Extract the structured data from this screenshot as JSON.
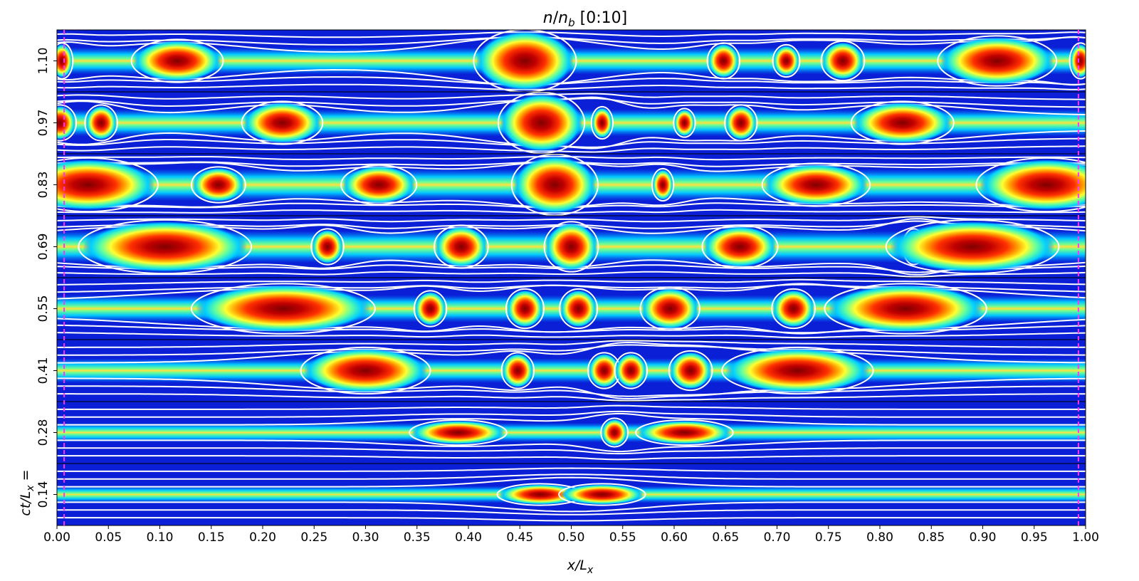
{
  "title": "n/n_b [0:10]",
  "title_parts": {
    "n": "n",
    "slash": "/",
    "nb": "n",
    "sub": "b",
    "range": " [0:10]"
  },
  "colormap": {
    "name": "jet",
    "bg": "#0a1fd6",
    "colors": [
      "#00007f",
      "#0000ff",
      "#0080ff",
      "#00ffff",
      "#80ff80",
      "#ffff00",
      "#ff8000",
      "#ff0000",
      "#7f0000"
    ]
  },
  "contour_color": "#ffffff",
  "marker_color": "#ff33ff",
  "chart_data": {
    "type": "heatmap",
    "xlabel": "x/L_x",
    "xlabel_parts": {
      "main": "x/L",
      "sub": "x"
    },
    "ylabel_parts": {
      "main": "ct/L",
      "sub": "x",
      "eq": " ="
    },
    "xlim": [
      0.0,
      1.0
    ],
    "x_ticks": [
      "0.00",
      "0.05",
      "0.10",
      "0.15",
      "0.20",
      "0.25",
      "0.30",
      "0.35",
      "0.40",
      "0.45",
      "0.50",
      "0.55",
      "0.60",
      "0.65",
      "0.70",
      "0.75",
      "0.80",
      "0.85",
      "0.90",
      "0.95",
      "1.00"
    ],
    "x_tick_values": [
      0.0,
      0.05,
      0.1,
      0.15,
      0.2,
      0.25,
      0.3,
      0.35,
      0.4,
      0.45,
      0.5,
      0.55,
      0.6,
      0.65,
      0.7,
      0.75,
      0.8,
      0.85,
      0.9,
      0.95,
      1.0
    ],
    "dashed_markers_x": [
      0.007,
      0.993
    ],
    "panels": [
      {
        "label": "1.10",
        "current_width": 0.22,
        "blobs": [
          [
            0.005,
            0.02,
            0.5
          ],
          [
            0.117,
            0.085,
            0.6
          ],
          [
            0.455,
            0.095,
            0.95
          ],
          [
            0.648,
            0.03,
            0.5
          ],
          [
            0.709,
            0.025,
            0.45
          ],
          [
            0.764,
            0.04,
            0.55
          ],
          [
            0.914,
            0.11,
            0.7
          ],
          [
            0.995,
            0.02,
            0.5
          ]
        ]
      },
      {
        "label": "0.97",
        "current_width": 0.22,
        "blobs": [
          [
            0.003,
            0.03,
            0.5
          ],
          [
            0.043,
            0.03,
            0.5
          ],
          [
            0.219,
            0.075,
            0.6
          ],
          [
            0.471,
            0.08,
            0.85
          ],
          [
            0.53,
            0.02,
            0.45
          ],
          [
            0.61,
            0.02,
            0.4
          ],
          [
            0.665,
            0.03,
            0.5
          ],
          [
            0.822,
            0.095,
            0.6
          ]
        ]
      },
      {
        "label": "0.83",
        "current_width": 0.26,
        "blobs": [
          [
            0.03,
            0.13,
            0.75
          ],
          [
            0.157,
            0.05,
            0.5
          ],
          [
            0.313,
            0.07,
            0.55
          ],
          [
            0.484,
            0.08,
            0.85
          ],
          [
            0.589,
            0.02,
            0.45
          ],
          [
            0.738,
            0.1,
            0.6
          ],
          [
            0.962,
            0.13,
            0.75
          ]
        ]
      },
      {
        "label": "0.69",
        "current_width": 0.26,
        "blobs": [
          [
            0.105,
            0.16,
            0.75
          ],
          [
            0.263,
            0.03,
            0.5
          ],
          [
            0.393,
            0.05,
            0.6
          ],
          [
            0.5,
            0.05,
            0.7
          ],
          [
            0.664,
            0.07,
            0.6
          ],
          [
            0.833,
            0.02,
            0.5
          ],
          [
            0.89,
            0.16,
            0.75
          ]
        ]
      },
      {
        "label": "0.55",
        "current_width": 0.22,
        "blobs": [
          [
            0.22,
            0.17,
            0.7
          ],
          [
            0.363,
            0.03,
            0.5
          ],
          [
            0.455,
            0.035,
            0.55
          ],
          [
            0.507,
            0.035,
            0.55
          ],
          [
            0.596,
            0.055,
            0.6
          ],
          [
            0.716,
            0.04,
            0.55
          ],
          [
            0.825,
            0.15,
            0.7
          ]
        ]
      },
      {
        "label": "0.41",
        "current_width": 0.2,
        "blobs": [
          [
            0.3,
            0.12,
            0.65
          ],
          [
            0.448,
            0.03,
            0.5
          ],
          [
            0.532,
            0.03,
            0.5
          ],
          [
            0.558,
            0.03,
            0.5
          ],
          [
            0.616,
            0.04,
            0.55
          ],
          [
            0.72,
            0.14,
            0.65
          ]
        ]
      },
      {
        "label": "0.28",
        "current_width": 0.16,
        "blobs": [
          [
            0.39,
            0.09,
            0.35
          ],
          [
            0.542,
            0.025,
            0.4
          ],
          [
            0.61,
            0.09,
            0.35
          ]
        ]
      },
      {
        "label": "0.14",
        "current_width": 0.14,
        "blobs": [
          [
            0.47,
            0.08,
            0.3
          ],
          [
            0.53,
            0.08,
            0.3
          ]
        ]
      }
    ]
  }
}
